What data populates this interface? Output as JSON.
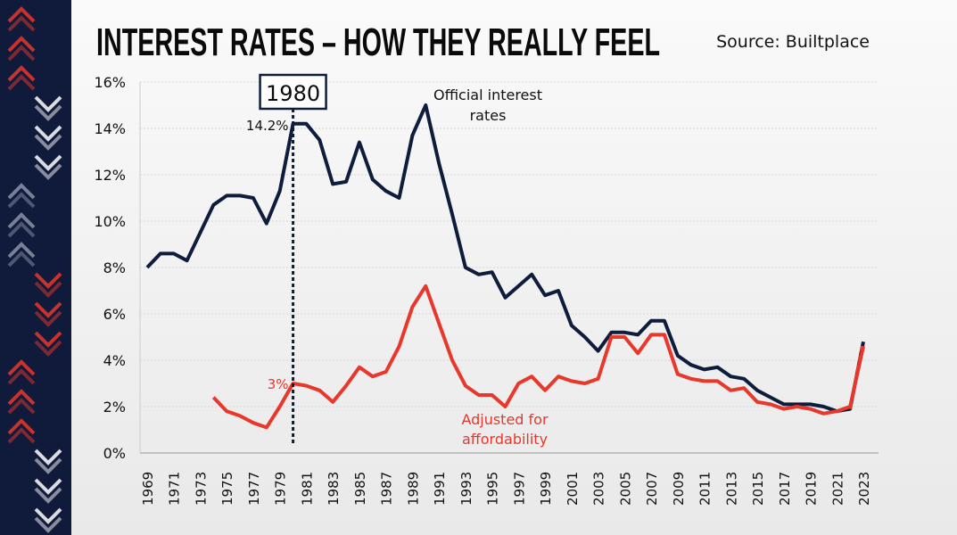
{
  "chart_data": {
    "type": "line",
    "title": "INTEREST RATES – HOW THEY REALLY FEEL",
    "source": "Source: Builtplace",
    "ylim": [
      0,
      16
    ],
    "yticks": [
      0,
      2,
      4,
      6,
      8,
      10,
      12,
      14,
      16
    ],
    "ytick_labels": [
      "0%",
      "2%",
      "4%",
      "6%",
      "8%",
      "10%",
      "12%",
      "14%",
      "16%"
    ],
    "xlim": [
      1969,
      2023
    ],
    "xtick_labels": [
      "1969",
      "1971",
      "1973",
      "1975",
      "1977",
      "1979",
      "1981",
      "1983",
      "1985",
      "1987",
      "1989",
      "1991",
      "1993",
      "1995",
      "1997",
      "1999",
      "2001",
      "2003",
      "2005",
      "2007",
      "2009",
      "2011",
      "2013",
      "2015",
      "2017",
      "2019",
      "2021",
      "2023"
    ],
    "grid": true,
    "series": [
      {
        "name": "Official interest rates",
        "color": "#0f1d3d",
        "x": [
          1969,
          1970,
          1971,
          1972,
          1973,
          1974,
          1975,
          1976,
          1977,
          1978,
          1979,
          1980,
          1981,
          1982,
          1983,
          1984,
          1985,
          1986,
          1987,
          1988,
          1989,
          1990,
          1991,
          1992,
          1993,
          1994,
          1995,
          1996,
          1997,
          1998,
          1999,
          2000,
          2001,
          2002,
          2003,
          2004,
          2005,
          2006,
          2007,
          2008,
          2009,
          2010,
          2011,
          2012,
          2013,
          2014,
          2015,
          2016,
          2017,
          2018,
          2019,
          2020,
          2021,
          2022,
          2023
        ],
        "y": [
          8.0,
          8.6,
          8.6,
          8.3,
          9.5,
          10.7,
          11.1,
          11.1,
          11.0,
          9.9,
          11.3,
          14.2,
          14.2,
          13.5,
          11.6,
          11.7,
          13.4,
          11.8,
          11.3,
          11.0,
          13.7,
          15.0,
          12.5,
          10.3,
          8.0,
          7.7,
          7.8,
          6.7,
          7.2,
          7.7,
          6.8,
          7.0,
          5.5,
          5.0,
          4.4,
          5.2,
          5.2,
          5.1,
          5.7,
          5.7,
          4.2,
          3.8,
          3.6,
          3.7,
          3.3,
          3.2,
          2.7,
          2.4,
          2.1,
          2.1,
          2.1,
          2.0,
          1.8,
          1.9,
          4.8
        ]
      },
      {
        "name": "Adjusted for affordability",
        "color": "#e8372b",
        "x": [
          1974,
          1975,
          1976,
          1977,
          1978,
          1979,
          1980,
          1981,
          1982,
          1983,
          1984,
          1985,
          1986,
          1987,
          1988,
          1989,
          1990,
          1991,
          1992,
          1993,
          1994,
          1995,
          1996,
          1997,
          1998,
          1999,
          2000,
          2001,
          2002,
          2003,
          2004,
          2005,
          2006,
          2007,
          2008,
          2009,
          2010,
          2011,
          2012,
          2013,
          2014,
          2015,
          2016,
          2017,
          2018,
          2019,
          2020,
          2021,
          2022,
          2023
        ],
        "y": [
          2.4,
          1.8,
          1.6,
          1.3,
          1.1,
          2.0,
          3.0,
          2.9,
          2.7,
          2.2,
          2.9,
          3.7,
          3.3,
          3.5,
          4.6,
          6.3,
          7.2,
          5.6,
          4.0,
          2.9,
          2.5,
          2.5,
          2.0,
          3.0,
          3.3,
          2.7,
          3.3,
          3.1,
          3.0,
          3.2,
          5.0,
          5.0,
          4.3,
          5.1,
          5.1,
          3.4,
          3.2,
          3.1,
          3.1,
          2.7,
          2.8,
          2.2,
          2.1,
          1.9,
          2.0,
          1.9,
          1.7,
          1.8,
          2.0,
          4.6
        ]
      }
    ],
    "annotations": {
      "highlight_year": 1980,
      "highlight_label": "1980",
      "official_value_label": "14.2%",
      "adjusted_value_label": "3%",
      "official_series_label": [
        "Official interest",
        "rates"
      ],
      "adjusted_series_label": [
        "Adjusted for",
        "affordability"
      ]
    }
  }
}
